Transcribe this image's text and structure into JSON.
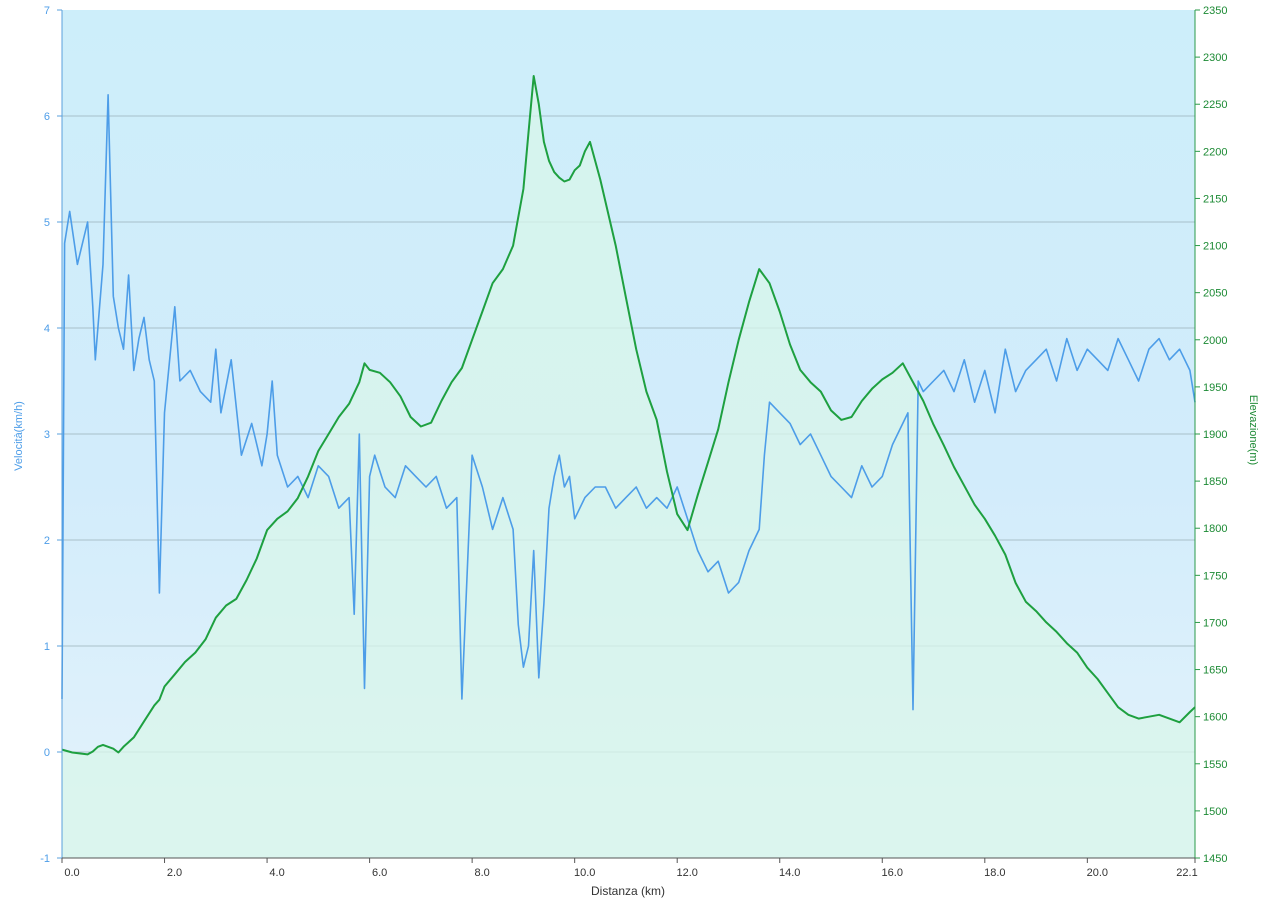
{
  "chart_data": {
    "type": "line",
    "xlabel": "Distanza  (km)",
    "y_left_label": "Velocità(km/h)",
    "y_right_label": "Elevazione(m)",
    "xlim": [
      0,
      22.1
    ],
    "ylim_left": [
      -1,
      7
    ],
    "ylim_right": [
      1450,
      2350
    ],
    "x_ticks": [
      "0.0",
      "2.0",
      "4.0",
      "6.0",
      "8.0",
      "10.0",
      "12.0",
      "14.0",
      "16.0",
      "18.0",
      "20.0",
      "22.1"
    ],
    "x_tick_values": [
      0,
      2,
      4,
      6,
      8,
      10,
      12,
      14,
      16,
      18,
      20,
      22.1
    ],
    "y_left_ticks": [
      "-1",
      "0",
      "1",
      "2",
      "3",
      "4",
      "5",
      "6",
      "7"
    ],
    "y_left_tick_values": [
      -1,
      0,
      1,
      2,
      3,
      4,
      5,
      6,
      7
    ],
    "y_right_ticks": [
      "1450",
      "1500",
      "1550",
      "1600",
      "1650",
      "1700",
      "1750",
      "1800",
      "1850",
      "1900",
      "1950",
      "2000",
      "2050",
      "2100",
      "2150",
      "2200",
      "2250",
      "2300",
      "2350"
    ],
    "y_right_tick_values": [
      1450,
      1500,
      1550,
      1600,
      1650,
      1700,
      1750,
      1800,
      1850,
      1900,
      1950,
      2000,
      2050,
      2100,
      2150,
      2200,
      2250,
      2300,
      2350
    ],
    "grid": true,
    "colors": {
      "speed": "#4d9de8",
      "elevation": "#1ea040",
      "left_axis_text": "#4d9de8",
      "right_axis_text": "#1c8a34",
      "plot_bg_top": "#cdeefa",
      "plot_bg_bottom": "#e1f2fb",
      "elevation_fill": "#d8f5ea",
      "gridline": "#9ab0b8"
    },
    "series": [
      {
        "axis": "left",
        "x": [
          0,
          0.05,
          0.15,
          0.3,
          0.5,
          0.6,
          0.65,
          0.8,
          0.9,
          1.0,
          1.1,
          1.2,
          1.3,
          1.4,
          1.5,
          1.6,
          1.7,
          1.8,
          1.9,
          2.0,
          2.2,
          2.3,
          2.5,
          2.7,
          2.9,
          3.0,
          3.1,
          3.3,
          3.5,
          3.7,
          3.9,
          4.0,
          4.1,
          4.2,
          4.4,
          4.6,
          4.8,
          5.0,
          5.2,
          5.4,
          5.6,
          5.7,
          5.8,
          5.9,
          6.0,
          6.1,
          6.3,
          6.5,
          6.7,
          6.9,
          7.1,
          7.3,
          7.5,
          7.7,
          7.8,
          8.0,
          8.2,
          8.4,
          8.6,
          8.8,
          8.9,
          9.0,
          9.1,
          9.2,
          9.3,
          9.4,
          9.5,
          9.6,
          9.7,
          9.8,
          9.9,
          10.0,
          10.2,
          10.4,
          10.6,
          10.8,
          11.0,
          11.2,
          11.4,
          11.6,
          11.8,
          12.0,
          12.2,
          12.4,
          12.6,
          12.8,
          13.0,
          13.2,
          13.4,
          13.6,
          13.7,
          13.8,
          14.0,
          14.2,
          14.4,
          14.6,
          14.8,
          15.0,
          15.2,
          15.4,
          15.6,
          15.8,
          16.0,
          16.2,
          16.4,
          16.5,
          16.6,
          16.7,
          16.8,
          17.0,
          17.2,
          17.4,
          17.6,
          17.8,
          18.0,
          18.2,
          18.4,
          18.6,
          18.8,
          19.0,
          19.2,
          19.4,
          19.6,
          19.8,
          20.0,
          20.2,
          20.4,
          20.6,
          20.8,
          21.0,
          21.2,
          21.4,
          21.6,
          21.8,
          22.0,
          22.1
        ],
        "values": [
          0.5,
          4.8,
          5.1,
          4.6,
          5.0,
          4.2,
          3.7,
          4.6,
          6.2,
          4.3,
          4.0,
          3.8,
          4.5,
          3.6,
          3.9,
          4.1,
          3.7,
          3.5,
          1.5,
          3.2,
          4.2,
          3.5,
          3.6,
          3.4,
          3.3,
          3.8,
          3.2,
          3.7,
          2.8,
          3.1,
          2.7,
          3.0,
          3.5,
          2.8,
          2.5,
          2.6,
          2.4,
          2.7,
          2.6,
          2.3,
          2.4,
          1.3,
          3.0,
          0.6,
          2.6,
          2.8,
          2.5,
          2.4,
          2.7,
          2.6,
          2.5,
          2.6,
          2.3,
          2.4,
          0.5,
          2.8,
          2.5,
          2.1,
          2.4,
          2.1,
          1.2,
          0.8,
          1.0,
          1.9,
          0.7,
          1.4,
          2.3,
          2.6,
          2.8,
          2.5,
          2.6,
          2.2,
          2.4,
          2.5,
          2.5,
          2.3,
          2.4,
          2.5,
          2.3,
          2.4,
          2.3,
          2.5,
          2.2,
          1.9,
          1.7,
          1.8,
          1.5,
          1.6,
          1.9,
          2.1,
          2.8,
          3.3,
          3.2,
          3.1,
          2.9,
          3.0,
          2.8,
          2.6,
          2.5,
          2.4,
          2.7,
          2.5,
          2.6,
          2.9,
          3.1,
          3.2,
          0.4,
          3.5,
          3.4,
          3.5,
          3.6,
          3.4,
          3.7,
          3.3,
          3.6,
          3.2,
          3.8,
          3.4,
          3.6,
          3.7,
          3.8,
          3.5,
          3.9,
          3.6,
          3.8,
          3.7,
          3.6,
          3.9,
          3.7,
          3.5,
          3.8,
          3.9,
          3.7,
          3.8,
          3.6,
          3.3
        ],
        "style": "noisy speed trace (km/h), frequent dips toward 0"
      },
      {
        "axis": "right",
        "x": [
          0,
          0.2,
          0.5,
          0.6,
          0.7,
          0.8,
          1.0,
          1.1,
          1.2,
          1.4,
          1.6,
          1.8,
          1.9,
          2.0,
          2.2,
          2.4,
          2.6,
          2.8,
          3.0,
          3.2,
          3.4,
          3.6,
          3.8,
          4.0,
          4.2,
          4.4,
          4.6,
          4.8,
          5.0,
          5.2,
          5.4,
          5.6,
          5.8,
          5.9,
          6.0,
          6.2,
          6.4,
          6.6,
          6.8,
          7.0,
          7.2,
          7.4,
          7.6,
          7.8,
          8.0,
          8.2,
          8.4,
          8.6,
          8.8,
          9.0,
          9.1,
          9.2,
          9.3,
          9.4,
          9.5,
          9.6,
          9.7,
          9.8,
          9.9,
          10.0,
          10.1,
          10.2,
          10.3,
          10.5,
          10.8,
          11.0,
          11.2,
          11.4,
          11.6,
          11.8,
          12.0,
          12.2,
          12.4,
          12.6,
          12.8,
          13.0,
          13.2,
          13.4,
          13.6,
          13.8,
          14.0,
          14.2,
          14.4,
          14.6,
          14.8,
          15.0,
          15.2,
          15.4,
          15.6,
          15.8,
          16.0,
          16.2,
          16.4,
          16.6,
          16.8,
          17.0,
          17.2,
          17.4,
          17.6,
          17.8,
          18.0,
          18.2,
          18.4,
          18.6,
          18.8,
          19.0,
          19.2,
          19.4,
          19.6,
          19.8,
          20.0,
          20.2,
          20.4,
          20.6,
          20.8,
          21.0,
          21.2,
          21.4,
          21.6,
          21.8,
          22.0,
          22.1
        ],
        "values": [
          1565,
          1562,
          1560,
          1563,
          1568,
          1570,
          1566,
          1562,
          1568,
          1578,
          1595,
          1612,
          1618,
          1632,
          1645,
          1658,
          1668,
          1682,
          1705,
          1718,
          1725,
          1745,
          1768,
          1798,
          1810,
          1818,
          1832,
          1855,
          1882,
          1900,
          1918,
          1932,
          1955,
          1975,
          1968,
          1965,
          1955,
          1940,
          1918,
          1908,
          1912,
          1935,
          1955,
          1970,
          2000,
          2030,
          2060,
          2075,
          2100,
          2160,
          2220,
          2280,
          2250,
          2210,
          2190,
          2178,
          2172,
          2168,
          2170,
          2180,
          2185,
          2200,
          2210,
          2170,
          2100,
          2045,
          1990,
          1945,
          1915,
          1860,
          1815,
          1798,
          1835,
          1870,
          1905,
          1955,
          2000,
          2040,
          2075,
          2060,
          2030,
          1995,
          1968,
          1955,
          1945,
          1925,
          1915,
          1918,
          1935,
          1948,
          1958,
          1965,
          1975,
          1955,
          1935,
          1910,
          1888,
          1865,
          1845,
          1825,
          1810,
          1792,
          1772,
          1742,
          1722,
          1712,
          1700,
          1690,
          1678,
          1668,
          1652,
          1640,
          1625,
          1610,
          1602,
          1598,
          1600,
          1602,
          1598,
          1594,
          1605,
          1610
        ],
        "style": "elevation profile (m), shaded area below"
      }
    ]
  }
}
